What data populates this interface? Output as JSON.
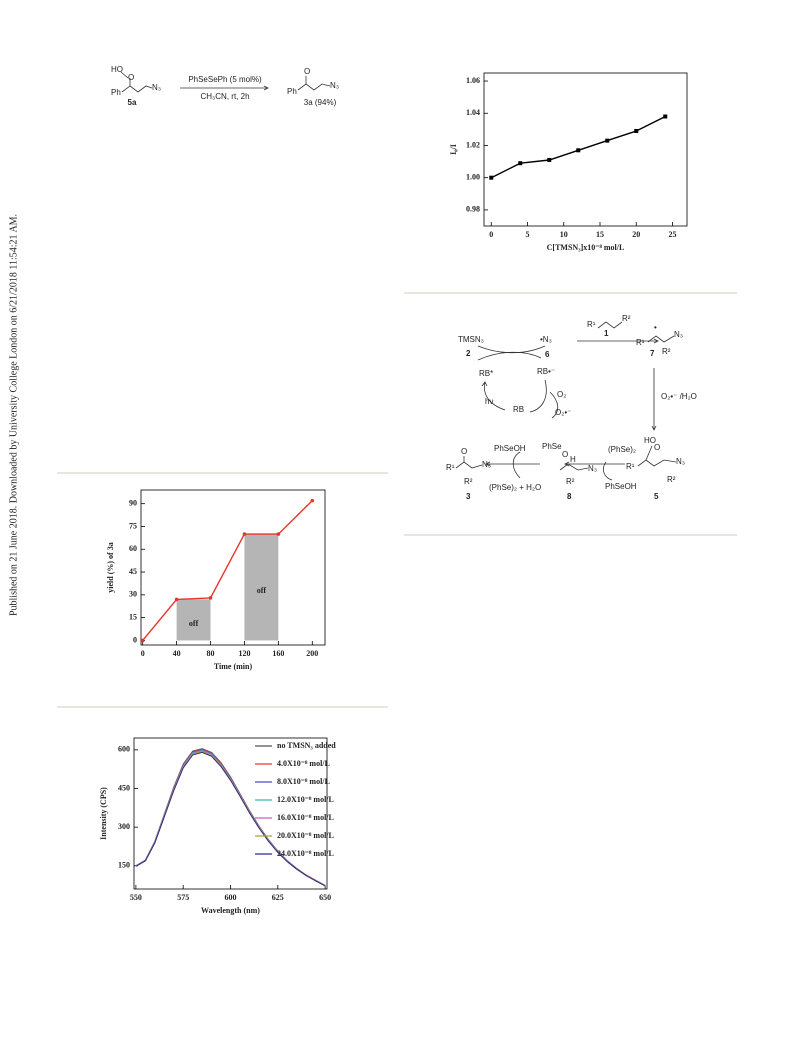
{
  "side_note": "Published on 21 June 2018. Downloaded by University College London on 6/21/2018 11:54:21 AM.",
  "scheme": {
    "labels": [
      "HO",
      "O",
      "Ph",
      "N₃",
      "5a",
      "PhSeSePh (5 mol%)",
      "CH₃CN, rt, 2h",
      "O",
      "Ph",
      "N₃",
      "3a (94%)"
    ]
  },
  "mechanism": {
    "labels": [
      "TMSN₃",
      "2",
      "•N₃",
      "6",
      "RB*",
      "RB•⁻",
      "O₂",
      "O₂•⁻",
      "hν",
      "RB",
      "R¹",
      "R²",
      "1",
      "R¹",
      "7",
      "R²",
      "N₃",
      "•",
      "O₂•⁻ /H₂O",
      "HO",
      "O",
      "R¹",
      "N₃",
      "R²",
      "5",
      "(PhSe)₂",
      "PhSeOH",
      "PhSe",
      "O",
      "H",
      "N₃",
      "R²",
      "8",
      "PhSeOH",
      "(PhSe)₂ + H₂O",
      "O",
      "R¹",
      "N₃",
      "R²",
      "3"
    ]
  },
  "chart_data": [
    {
      "type": "line",
      "x_label": "C[TMSN₃]x10⁻⁸ mol/L",
      "y_label": "I₀/I",
      "x": [
        0,
        4,
        8,
        12,
        16,
        20,
        24
      ],
      "values": [
        1.0,
        1.009,
        1.011,
        1.017,
        1.023,
        1.029,
        1.038
      ],
      "color": "#000000",
      "marker": "square",
      "xlim": [
        -1,
        27
      ],
      "ylim": [
        0.97,
        1.065
      ],
      "xticks": [
        0,
        5,
        10,
        15,
        20,
        25
      ],
      "yticks": [
        0.98,
        {
          "value": 1.0,
          "label": "1.00"
        },
        1.02,
        1.04,
        1.06
      ]
    },
    {
      "type": "line",
      "x_label": "Time (min)",
      "y_label": "yield (%) of 3a",
      "x": [
        0,
        40,
        80,
        120,
        160,
        200
      ],
      "values": [
        0,
        27,
        28,
        70,
        70,
        92
      ],
      "color": "#e8352b",
      "marker": "circle",
      "shaded": [
        {
          "from": 40,
          "to": 80,
          "label": "off"
        },
        {
          "from": 120,
          "to": 160,
          "label": "off"
        }
      ],
      "xlim": [
        -2,
        215
      ],
      "ylim": [
        -3,
        99
      ],
      "xticks": [
        0,
        40,
        80,
        120,
        160,
        200
      ],
      "yticks": [
        0,
        15,
        30,
        45,
        60,
        75,
        90
      ]
    },
    {
      "type": "line",
      "x_label": "Wavelength (nm)",
      "y_label": "Intensity (CPS)",
      "legend": "upper right",
      "x": [
        550,
        555,
        560,
        565,
        570,
        575,
        580,
        585,
        590,
        595,
        600,
        605,
        610,
        615,
        620,
        625,
        630,
        635,
        640,
        645,
        650
      ],
      "series": [
        {
          "name": "no TMSN₃ added",
          "color": "#555555",
          "values": [
            150,
            172,
            245,
            350,
            455,
            545,
            595,
            605,
            590,
            550,
            495,
            430,
            365,
            305,
            252,
            207,
            170,
            140,
            114,
            94,
            74
          ]
        },
        {
          "name": "4.0X10⁻⁸ mol/L",
          "color": "#e8352b",
          "values": [
            150,
            171,
            243,
            348,
            452,
            542,
            592,
            602,
            587,
            547,
            492,
            428,
            363,
            303,
            251,
            206,
            169,
            139,
            114,
            94,
            74
          ]
        },
        {
          "name": "8.0X10⁻⁸ mol/L",
          "color": "#4b4bd6",
          "values": [
            150,
            171,
            242,
            346,
            450,
            540,
            590,
            600,
            585,
            545,
            490,
            426,
            362,
            302,
            250,
            205,
            169,
            139,
            113,
            93,
            74
          ]
        },
        {
          "name": "12.0X10⁻⁸ mol/L",
          "color": "#3fb6b6",
          "values": [
            149,
            170,
            241,
            345,
            448,
            538,
            588,
            598,
            583,
            543,
            488,
            425,
            361,
            301,
            249,
            205,
            168,
            138,
            113,
            93,
            73
          ]
        },
        {
          "name": "16.0X10⁻⁸ mol/L",
          "color": "#d05bc8",
          "values": [
            149,
            170,
            240,
            344,
            446,
            536,
            586,
            596,
            581,
            541,
            487,
            424,
            360,
            300,
            248,
            204,
            168,
            138,
            113,
            93,
            73
          ]
        },
        {
          "name": "20.0X10⁻⁸ mol/L",
          "color": "#a6a62a",
          "values": [
            149,
            169,
            239,
            342,
            444,
            533,
            583,
            593,
            578,
            538,
            485,
            422,
            358,
            299,
            247,
            203,
            167,
            137,
            112,
            92,
            73
          ]
        },
        {
          "name": "24.0X10⁻⁸ mol/L",
          "color": "#2c2c8a",
          "values": [
            148,
            169,
            238,
            340,
            441,
            530,
            580,
            590,
            575,
            535,
            482,
            420,
            356,
            297,
            246,
            202,
            166,
            137,
            112,
            92,
            72
          ]
        }
      ],
      "xlim": [
        549,
        651
      ],
      "ylim": [
        60,
        646
      ],
      "xticks": [
        550,
        575,
        600,
        625,
        650
      ],
      "yticks": [
        150,
        300,
        450,
        600
      ]
    }
  ]
}
